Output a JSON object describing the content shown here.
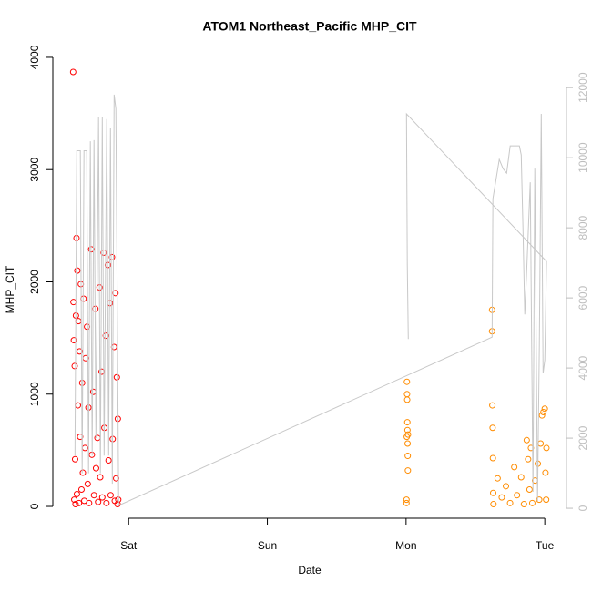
{
  "chart_data": {
    "type": "scatter",
    "title": "ATOM1 Northeast_Pacific MHP_CIT",
    "x_label": "Date",
    "y_label": "MHP_CIT",
    "xlim": [
      -0.54,
      3.15
    ],
    "xticks": [
      {
        "value": 0,
        "label": "Sat"
      },
      {
        "value": 1,
        "label": "Sun"
      },
      {
        "value": 2,
        "label": "Mon"
      },
      {
        "value": 3,
        "label": "Tue"
      }
    ],
    "ylim": [
      -154,
      4024
    ],
    "yticks": [
      0,
      1000,
      2000,
      3000,
      4000
    ],
    "y2lim": [
      -440,
      12940
    ],
    "y2ticks": [
      0,
      2000,
      4000,
      6000,
      8000,
      10000,
      12000
    ],
    "y2_color": "#bebebe",
    "series": [
      {
        "color": "red",
        "kind": "point",
        "x": [
          -0.4,
          -0.398,
          -0.395,
          -0.392,
          -0.389,
          -0.386,
          -0.383,
          -0.38,
          -0.376,
          -0.373,
          -0.37,
          -0.366,
          -0.362,
          -0.358,
          -0.354,
          -0.35,
          -0.345,
          -0.34,
          -0.335,
          -0.33,
          -0.325,
          -0.32,
          -0.315,
          -0.31,
          -0.3,
          -0.295,
          -0.29,
          -0.285,
          -0.27,
          -0.265,
          -0.255,
          -0.25,
          -0.24,
          -0.235,
          -0.225,
          -0.22,
          -0.21,
          -0.205,
          -0.195,
          -0.19,
          -0.18,
          -0.175,
          -0.165,
          -0.16,
          -0.15,
          -0.145,
          -0.135,
          -0.13,
          -0.12,
          -0.115,
          -0.105,
          -0.1,
          -0.095,
          -0.09,
          -0.085,
          -0.08,
          -0.078,
          -0.075
        ],
        "values": [
          3870,
          1820,
          1480,
          60,
          1250,
          420,
          20,
          1700,
          2390,
          110,
          2100,
          900,
          1650,
          30,
          1380,
          620,
          1980,
          150,
          1100,
          300,
          1850,
          50,
          520,
          1320,
          1600,
          200,
          880,
          30,
          2290,
          460,
          1020,
          100,
          1760,
          340,
          610,
          40,
          1950,
          260,
          1200,
          80,
          2260,
          700,
          1520,
          30,
          2150,
          410,
          1810,
          100,
          2220,
          600,
          1420,
          50,
          1900,
          250,
          1150,
          20,
          780,
          60
        ]
      },
      {
        "color": "darkorange",
        "kind": "point",
        "x": [
          2.003,
          2.003,
          2.005,
          2.006,
          2.007,
          2.008,
          2.009,
          2.01,
          2.011,
          2.012,
          2.013,
          2.014,
          2.62,
          2.62,
          2.622,
          2.624,
          2.626,
          2.628,
          2.63,
          2.66,
          2.69,
          2.72,
          2.75,
          2.78,
          2.8,
          2.83,
          2.85,
          2.87,
          2.88,
          2.89,
          2.9,
          2.91,
          2.93,
          2.95,
          2.96,
          2.97,
          2.98,
          2.99,
          3.0,
          3.005,
          3.01,
          3.012
        ],
        "values": [
          30,
          60,
          620,
          1110,
          1000,
          950,
          750,
          680,
          560,
          450,
          320,
          640,
          1750,
          1560,
          900,
          700,
          430,
          120,
          20,
          250,
          80,
          180,
          30,
          350,
          100,
          260,
          20,
          590,
          420,
          150,
          520,
          30,
          230,
          380,
          60,
          560,
          810,
          840,
          870,
          300,
          60,
          520
        ]
      },
      {
        "color": "#c8c8c8",
        "kind": "line",
        "axis": "y2",
        "x": [
          -0.387,
          -0.374,
          -0.348,
          -0.335,
          -0.322,
          -0.302,
          -0.289,
          -0.276,
          -0.263,
          -0.25,
          -0.236,
          -0.217,
          -0.204,
          -0.19,
          -0.177,
          -0.158,
          -0.144,
          -0.131,
          -0.118,
          -0.105,
          -0.092,
          -0.072,
          2.62,
          2.626,
          2.672,
          2.699,
          2.725,
          2.751,
          2.817,
          2.83,
          2.843,
          2.856,
          2.869,
          2.895,
          2.915,
          2.928,
          2.948,
          2.961,
          2.975,
          2.988,
          3.0,
          3.013,
          2.003,
          2.009,
          2.016
        ],
        "values": [
          1500,
          10200,
          10200,
          1000,
          10200,
          10200,
          1000,
          10470,
          1500,
          10500,
          2000,
          11160,
          1000,
          11160,
          1500,
          11100,
          1500,
          10850,
          700,
          11800,
          11400,
          80,
          4880,
          8830,
          9950,
          9690,
          9560,
          10340,
          10340,
          10080,
          8000,
          5530,
          6700,
          9300,
          470,
          9690,
          210,
          4620,
          11250,
          3850,
          4230,
          7040,
          11250,
          6960,
          4830
        ]
      }
    ]
  }
}
